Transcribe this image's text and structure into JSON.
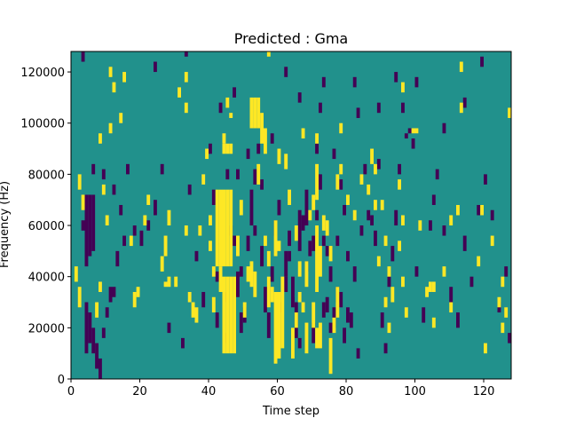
{
  "chart_data": {
    "type": "heatmap",
    "title": "Predicted : Gma",
    "xlabel": "Time step",
    "ylabel": "Frequency (Hz)",
    "xlim": [
      0,
      128
    ],
    "ylim": [
      0,
      128000
    ],
    "x_ticks": [
      0,
      20,
      40,
      60,
      80,
      100,
      120
    ],
    "y_ticks": [
      0,
      20000,
      40000,
      60000,
      80000,
      100000,
      120000
    ],
    "y_tick_labels": [
      "0",
      "20000",
      "40000",
      "60000",
      "80000",
      "100000",
      "120000"
    ],
    "grid": false,
    "colormap": "viridis",
    "colors": {
      "background": "#21918c",
      "low": "#440154",
      "high": "#fde725"
    },
    "cell_width_time_steps": 1,
    "cell_height_hz": 2000,
    "high_cells": [
      [
        44,
        10000,
        40000
      ],
      [
        45,
        10000,
        40000
      ],
      [
        46,
        10000,
        40000
      ],
      [
        47,
        10000,
        40000
      ],
      [
        43,
        34000,
        44000
      ],
      [
        42,
        44000,
        74000
      ],
      [
        43,
        44000,
        74000
      ],
      [
        44,
        44000,
        74000
      ],
      [
        45,
        44000,
        74000
      ],
      [
        46,
        44000,
        74000
      ],
      [
        44,
        88000,
        92000
      ],
      [
        45,
        88000,
        92000
      ],
      [
        46,
        88000,
        92000
      ],
      [
        52,
        98000,
        110000
      ],
      [
        53,
        98000,
        110000
      ],
      [
        54,
        98000,
        110000
      ],
      [
        53,
        32000,
        42000
      ],
      [
        52,
        36000,
        46000
      ],
      [
        59,
        6000,
        34000
      ],
      [
        60,
        8000,
        34000
      ],
      [
        61,
        12000,
        40000
      ],
      [
        57,
        28000,
        40000
      ],
      [
        58,
        30000,
        36000
      ],
      [
        56,
        52000,
        56000
      ],
      [
        59,
        48000,
        62000
      ],
      [
        60,
        50000,
        54000
      ],
      [
        72,
        12000,
        22000
      ],
      [
        71,
        12000,
        20000
      ],
      [
        70,
        20000,
        30000
      ],
      [
        71,
        34000,
        60000
      ],
      [
        72,
        40000,
        52000
      ],
      [
        70,
        66000,
        72000
      ],
      [
        71,
        70000,
        84000
      ],
      [
        68,
        36000,
        46000
      ],
      [
        68,
        10000,
        22000
      ],
      [
        75,
        2000,
        16000
      ],
      [
        76,
        18000,
        24000
      ],
      [
        77,
        24000,
        36000
      ],
      [
        64,
        8000,
        20000
      ],
      [
        65,
        20000,
        26000
      ],
      [
        62,
        82000,
        88000
      ],
      [
        60,
        84000,
        90000
      ],
      [
        57,
        44000,
        50000
      ],
      [
        56,
        88000,
        98000
      ],
      [
        55,
        92000,
        104000
      ],
      [
        54,
        76000,
        84000
      ],
      [
        46,
        102000,
        104000
      ],
      [
        45,
        106000,
        110000
      ],
      [
        44,
        92000,
        96000
      ],
      [
        40,
        50000,
        54000
      ],
      [
        41,
        40000,
        44000
      ],
      [
        36,
        22000,
        28000
      ],
      [
        35,
        24000,
        30000
      ],
      [
        34,
        30000,
        34000
      ],
      [
        33,
        56000,
        60000
      ],
      [
        33,
        104000,
        108000
      ],
      [
        27,
        36000,
        38000
      ],
      [
        28,
        36000,
        40000
      ],
      [
        26,
        42000,
        48000
      ],
      [
        27,
        48000,
        56000
      ],
      [
        28,
        60000,
        66000
      ],
      [
        22,
        68000,
        72000
      ],
      [
        21,
        60000,
        64000
      ],
      [
        17,
        52000,
        56000
      ],
      [
        18,
        28000,
        34000
      ],
      [
        19,
        32000,
        36000
      ],
      [
        14,
        100000,
        104000
      ],
      [
        15,
        116000,
        120000
      ],
      [
        12,
        112000,
        116000
      ],
      [
        11,
        96000,
        100000
      ],
      [
        11,
        118000,
        122000
      ],
      [
        9,
        72000,
        76000
      ],
      [
        8,
        92000,
        96000
      ],
      [
        10,
        60000,
        64000
      ],
      [
        7,
        24000,
        30000
      ],
      [
        8,
        34000,
        38000
      ],
      [
        2,
        74000,
        80000
      ],
      [
        3,
        66000,
        72000
      ],
      [
        2,
        28000,
        36000
      ],
      [
        1,
        38000,
        44000
      ],
      [
        40,
        60000,
        64000
      ],
      [
        38,
        76000,
        80000
      ],
      [
        39,
        86000,
        90000
      ],
      [
        41,
        26000,
        32000
      ],
      [
        37,
        56000,
        60000
      ],
      [
        48,
        48000,
        56000
      ],
      [
        49,
        64000,
        70000
      ],
      [
        50,
        24000,
        30000
      ],
      [
        51,
        38000,
        44000
      ],
      [
        63,
        68000,
        74000
      ],
      [
        65,
        54000,
        60000
      ],
      [
        66,
        40000,
        46000
      ],
      [
        67,
        26000,
        30000
      ],
      [
        69,
        62000,
        66000
      ],
      [
        73,
        58000,
        64000
      ],
      [
        74,
        56000,
        62000
      ],
      [
        75,
        46000,
        52000
      ],
      [
        77,
        74000,
        80000
      ],
      [
        78,
        80000,
        84000
      ],
      [
        80,
        68000,
        72000
      ],
      [
        82,
        62000,
        66000
      ],
      [
        84,
        76000,
        80000
      ],
      [
        86,
        72000,
        76000
      ],
      [
        87,
        84000,
        90000
      ],
      [
        88,
        80000,
        84000
      ],
      [
        90,
        66000,
        70000
      ],
      [
        91,
        52000,
        56000
      ],
      [
        92,
        40000,
        44000
      ],
      [
        93,
        30000,
        36000
      ],
      [
        95,
        50000,
        54000
      ],
      [
        96,
        36000,
        40000
      ],
      [
        97,
        24000,
        28000
      ],
      [
        99,
        96000,
        98000
      ],
      [
        100,
        96000,
        98000
      ],
      [
        101,
        58000,
        62000
      ],
      [
        103,
        32000,
        36000
      ],
      [
        105,
        20000,
        24000
      ],
      [
        108,
        40000,
        44000
      ],
      [
        110,
        26000,
        30000
      ],
      [
        112,
        64000,
        68000
      ],
      [
        113,
        120000,
        124000
      ],
      [
        118,
        44000,
        48000
      ],
      [
        120,
        10000,
        14000
      ],
      [
        122,
        52000,
        56000
      ],
      [
        124,
        28000,
        32000
      ],
      [
        125,
        36000,
        40000
      ],
      [
        126,
        24000,
        28000
      ],
      [
        127,
        102000,
        106000
      ],
      [
        57,
        126000,
        128000
      ],
      [
        33,
        116000,
        120000
      ],
      [
        31,
        110000,
        114000
      ],
      [
        30,
        36000,
        40000
      ],
      [
        78,
        96000,
        100000
      ],
      [
        96,
        112000,
        116000
      ],
      [
        105,
        34000,
        38000
      ],
      [
        110,
        60000,
        64000
      ],
      [
        113,
        104000,
        108000
      ],
      [
        88,
        66000,
        70000
      ],
      [
        89,
        44000,
        48000
      ],
      [
        91,
        28000,
        32000
      ],
      [
        92,
        18000,
        22000
      ],
      [
        95,
        74000,
        78000
      ],
      [
        96,
        60000,
        64000
      ],
      [
        119,
        64000,
        68000
      ],
      [
        125,
        18000,
        22000
      ],
      [
        104,
        34000,
        38000
      ],
      [
        67,
        94000,
        98000
      ],
      [
        71,
        92000,
        96000
      ],
      [
        66,
        30000,
        34000
      ]
    ],
    "low_cells": [
      [
        4,
        44000,
        72000
      ],
      [
        5,
        48000,
        72000
      ],
      [
        6,
        50000,
        72000
      ],
      [
        3,
        58000,
        62000
      ],
      [
        4,
        10000,
        30000
      ],
      [
        5,
        14000,
        26000
      ],
      [
        6,
        10000,
        20000
      ],
      [
        7,
        4000,
        14000
      ],
      [
        8,
        0,
        8000
      ],
      [
        9,
        16000,
        20000
      ],
      [
        10,
        24000,
        28000
      ],
      [
        11,
        30000,
        36000
      ],
      [
        12,
        32000,
        36000
      ],
      [
        6,
        80000,
        84000
      ],
      [
        9,
        78000,
        82000
      ],
      [
        12,
        72000,
        76000
      ],
      [
        13,
        44000,
        50000
      ],
      [
        14,
        64000,
        68000
      ],
      [
        15,
        52000,
        56000
      ],
      [
        16,
        80000,
        84000
      ],
      [
        18,
        56000,
        60000
      ],
      [
        20,
        52000,
        58000
      ],
      [
        22,
        58000,
        62000
      ],
      [
        24,
        64000,
        70000
      ],
      [
        26,
        80000,
        84000
      ],
      [
        28,
        18000,
        22000
      ],
      [
        32,
        12000,
        16000
      ],
      [
        34,
        72000,
        76000
      ],
      [
        36,
        46000,
        50000
      ],
      [
        38,
        28000,
        34000
      ],
      [
        41,
        68000,
        74000
      ],
      [
        42,
        20000,
        26000
      ],
      [
        44,
        14000,
        18000
      ],
      [
        48,
        32000,
        42000
      ],
      [
        49,
        18000,
        26000
      ],
      [
        50,
        22000,
        28000
      ],
      [
        51,
        50000,
        56000
      ],
      [
        52,
        60000,
        74000
      ],
      [
        53,
        76000,
        82000
      ],
      [
        54,
        88000,
        92000
      ],
      [
        55,
        44000,
        52000
      ],
      [
        56,
        26000,
        36000
      ],
      [
        57,
        16000,
        26000
      ],
      [
        58,
        38000,
        44000
      ],
      [
        59,
        56000,
        62000
      ],
      [
        60,
        64000,
        70000
      ],
      [
        62,
        40000,
        50000
      ],
      [
        63,
        52000,
        58000
      ],
      [
        64,
        30000,
        40000
      ],
      [
        65,
        16000,
        30000
      ],
      [
        66,
        50000,
        66000
      ],
      [
        67,
        58000,
        64000
      ],
      [
        68,
        60000,
        74000
      ],
      [
        69,
        48000,
        54000
      ],
      [
        70,
        14000,
        22000
      ],
      [
        72,
        74000,
        80000
      ],
      [
        73,
        24000,
        30000
      ],
      [
        74,
        26000,
        32000
      ],
      [
        75,
        38000,
        44000
      ],
      [
        76,
        20000,
        28000
      ],
      [
        77,
        30000,
        36000
      ],
      [
        78,
        28000,
        34000
      ],
      [
        79,
        14000,
        20000
      ],
      [
        80,
        22000,
        28000
      ],
      [
        82,
        38000,
        44000
      ],
      [
        83,
        8000,
        12000
      ],
      [
        84,
        56000,
        60000
      ],
      [
        85,
        80000,
        84000
      ],
      [
        86,
        62000,
        66000
      ],
      [
        87,
        60000,
        64000
      ],
      [
        88,
        52000,
        58000
      ],
      [
        89,
        82000,
        86000
      ],
      [
        90,
        20000,
        26000
      ],
      [
        91,
        10000,
        14000
      ],
      [
        92,
        36000,
        40000
      ],
      [
        93,
        46000,
        52000
      ],
      [
        94,
        60000,
        66000
      ],
      [
        95,
        80000,
        84000
      ],
      [
        97,
        94000,
        96000
      ],
      [
        98,
        96000,
        98000
      ],
      [
        99,
        90000,
        94000
      ],
      [
        100,
        40000,
        44000
      ],
      [
        102,
        22000,
        28000
      ],
      [
        104,
        58000,
        62000
      ],
      [
        105,
        68000,
        72000
      ],
      [
        106,
        78000,
        82000
      ],
      [
        108,
        56000,
        60000
      ],
      [
        110,
        30000,
        36000
      ],
      [
        112,
        20000,
        26000
      ],
      [
        114,
        50000,
        56000
      ],
      [
        116,
        36000,
        40000
      ],
      [
        118,
        64000,
        68000
      ],
      [
        120,
        76000,
        80000
      ],
      [
        122,
        62000,
        66000
      ],
      [
        124,
        26000,
        30000
      ],
      [
        126,
        40000,
        44000
      ],
      [
        127,
        14000,
        18000
      ],
      [
        3,
        124000,
        128000
      ],
      [
        24,
        120000,
        124000
      ],
      [
        33,
        126000,
        128000
      ],
      [
        43,
        104000,
        108000
      ],
      [
        40,
        88000,
        92000
      ],
      [
        47,
        110000,
        114000
      ],
      [
        51,
        86000,
        90000
      ],
      [
        58,
        92000,
        96000
      ],
      [
        62,
        118000,
        122000
      ],
      [
        66,
        108000,
        112000
      ],
      [
        72,
        104000,
        108000
      ],
      [
        73,
        114000,
        118000
      ],
      [
        82,
        114000,
        118000
      ],
      [
        83,
        102000,
        106000
      ],
      [
        89,
        104000,
        108000
      ],
      [
        94,
        116000,
        120000
      ],
      [
        96,
        104000,
        108000
      ],
      [
        100,
        114000,
        118000
      ],
      [
        108,
        96000,
        100000
      ],
      [
        114,
        106000,
        110000
      ],
      [
        119,
        122000,
        126000
      ],
      [
        44,
        30000,
        34000
      ],
      [
        60,
        26000,
        30000
      ],
      [
        63,
        46000,
        50000
      ],
      [
        71,
        88000,
        92000
      ],
      [
        76,
        86000,
        90000
      ],
      [
        42,
        38000,
        42000
      ],
      [
        46,
        56000,
        60000
      ],
      [
        48,
        78000,
        82000
      ],
      [
        45,
        78000,
        82000
      ],
      [
        55,
        74000,
        78000
      ],
      [
        53,
        56000,
        60000
      ],
      [
        47,
        52000,
        56000
      ],
      [
        49,
        40000,
        44000
      ],
      [
        62,
        34000,
        40000
      ],
      [
        64,
        28000,
        32000
      ],
      [
        66,
        12000,
        16000
      ],
      [
        68,
        42000,
        46000
      ],
      [
        70,
        50000,
        56000
      ],
      [
        71,
        62000,
        66000
      ],
      [
        73,
        52000,
        56000
      ],
      [
        74,
        48000,
        52000
      ],
      [
        75,
        18000,
        22000
      ],
      [
        77,
        52000,
        56000
      ],
      [
        78,
        74000,
        78000
      ],
      [
        79,
        64000,
        68000
      ],
      [
        80,
        46000,
        50000
      ],
      [
        81,
        20000,
        26000
      ]
    ]
  }
}
